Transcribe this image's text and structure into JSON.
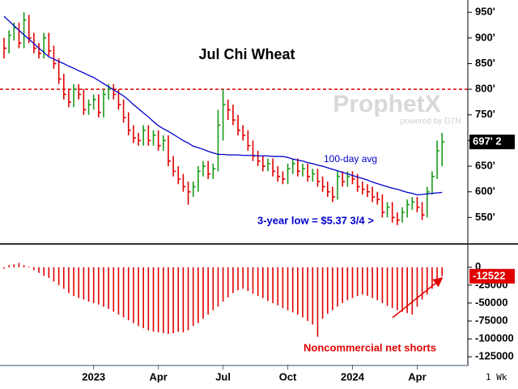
{
  "chart_data": [
    {
      "type": "hlc",
      "title": "Jul Chi Wheat",
      "high": [
        900,
        915,
        930,
        930,
        950,
        945,
        910,
        890,
        910,
        910,
        885,
        860,
        830,
        800,
        810,
        810,
        800,
        780,
        790,
        790,
        800,
        810,
        810,
        800,
        780,
        755,
        730,
        715,
        730,
        730,
        720,
        720,
        710,
        710,
        670,
        650,
        635,
        620,
        620,
        650,
        660,
        660,
        655,
        760,
        800,
        780,
        770,
        750,
        730,
        720,
        700,
        680,
        670,
        665,
        665,
        650,
        640,
        655,
        665,
        665,
        655,
        655,
        645,
        645,
        630,
        620,
        610,
        640,
        640,
        640,
        640,
        635,
        620,
        615,
        610,
        600,
        595,
        580,
        580,
        560,
        570,
        585,
        590,
        590,
        580,
        610,
        640,
        700,
        715
      ],
      "low": [
        860,
        870,
        895,
        880,
        880,
        890,
        870,
        860,
        860,
        865,
        840,
        810,
        780,
        765,
        765,
        780,
        750,
        750,
        760,
        745,
        745,
        780,
        780,
        760,
        735,
        710,
        695,
        690,
        690,
        690,
        690,
        680,
        680,
        650,
        630,
        615,
        600,
        575,
        590,
        600,
        630,
        625,
        625,
        640,
        700,
        740,
        730,
        710,
        700,
        680,
        660,
        650,
        640,
        640,
        630,
        620,
        615,
        615,
        635,
        630,
        630,
        620,
        620,
        610,
        600,
        590,
        580,
        585,
        610,
        610,
        615,
        600,
        595,
        590,
        580,
        575,
        550,
        550,
        540,
        535,
        540,
        550,
        565,
        560,
        545,
        550,
        595,
        625,
        650
      ],
      "close": [
        880,
        905,
        920,
        890,
        935,
        900,
        880,
        870,
        900,
        875,
        850,
        820,
        790,
        775,
        800,
        790,
        760,
        770,
        780,
        755,
        790,
        800,
        790,
        770,
        745,
        720,
        705,
        700,
        720,
        700,
        710,
        690,
        700,
        660,
        640,
        625,
        610,
        600,
        610,
        640,
        650,
        635,
        645,
        730,
        770,
        760,
        740,
        720,
        710,
        690,
        670,
        660,
        650,
        655,
        640,
        630,
        625,
        645,
        655,
        640,
        645,
        630,
        635,
        620,
        610,
        600,
        590,
        630,
        620,
        630,
        625,
        610,
        605,
        600,
        590,
        585,
        560,
        570,
        550,
        545,
        560,
        575,
        580,
        570,
        555,
        600,
        630,
        680,
        697.25
      ],
      "up_color": "#1a9a1a",
      "down_color": "#e00000",
      "average": {
        "label": "100-day avg",
        "color": "#0000cc",
        "values": [
          942,
          933,
          924,
          915,
          906,
          898,
          889,
          880,
          872,
          863,
          859,
          854,
          850,
          845,
          841,
          836,
          832,
          827,
          823,
          817,
          811,
          805,
          799,
          793,
          787,
          779,
          770,
          762,
          754,
          746,
          737,
          729,
          723,
          718,
          712,
          706,
          700,
          695,
          689,
          686,
          683,
          679,
          676,
          673,
          673,
          672,
          672,
          672,
          671,
          671,
          671,
          670,
          670,
          670,
          669,
          669,
          669,
          667,
          664,
          662,
          660,
          657,
          655,
          652,
          650,
          647,
          644,
          641,
          638,
          635,
          632,
          629,
          626,
          623,
          619,
          616,
          613,
          610,
          607,
          605,
          602,
          599,
          597,
          594,
          595,
          596,
          597,
          598,
          599
        ]
      },
      "reference_line": {
        "value": 800,
        "color": "#e00000"
      },
      "annotation": "3-year low = $5.37 3/4 >",
      "last_price": {
        "value": 697.25,
        "label": "697' 2"
      },
      "ylim": [
        500,
        974
      ],
      "yticks": [
        {
          "value": 550,
          "label": "550'"
        },
        {
          "value": 600,
          "label": "600'"
        },
        {
          "value": 650,
          "label": "650'"
        },
        {
          "value": 700,
          "label": "700'"
        },
        {
          "value": 750,
          "label": "750'"
        },
        {
          "value": 800,
          "label": "800'"
        },
        {
          "value": 850,
          "label": "850'"
        },
        {
          "value": 900,
          "label": "900'"
        },
        {
          "value": 950,
          "label": "950'"
        }
      ]
    },
    {
      "type": "bar",
      "categories": [
        null,
        null,
        null,
        null,
        null,
        null,
        null,
        null,
        null,
        null,
        null,
        null,
        null,
        null,
        null,
        null,
        null,
        null,
        "2023",
        null,
        null,
        null,
        null,
        null,
        null,
        null,
        null,
        null,
        null,
        null,
        null,
        "Apr",
        null,
        null,
        null,
        null,
        null,
        null,
        null,
        null,
        null,
        null,
        null,
        null,
        "Jul",
        null,
        null,
        null,
        null,
        null,
        null,
        null,
        null,
        null,
        null,
        null,
        null,
        "Oct",
        null,
        null,
        null,
        null,
        null,
        null,
        null,
        null,
        null,
        null,
        null,
        null,
        "2024",
        null,
        null,
        null,
        null,
        null,
        null,
        null,
        null,
        null,
        null,
        null,
        null,
        "Apr",
        null,
        null,
        null,
        null,
        null
      ],
      "values": [
        -2000,
        3000,
        4000,
        6000,
        3000,
        1000,
        -4000,
        -8000,
        -12000,
        -15000,
        -20000,
        -25000,
        -30000,
        -36000,
        -40000,
        -43000,
        -45000,
        -48000,
        -50000,
        -52000,
        -55000,
        -58000,
        -62000,
        -66000,
        -70000,
        -74000,
        -78000,
        -82000,
        -85000,
        -88000,
        -90000,
        -91000,
        -92000,
        -93000,
        -92000,
        -90000,
        -91000,
        -88000,
        -82000,
        -78000,
        -72000,
        -66000,
        -60000,
        -55000,
        -48000,
        -42000,
        -36000,
        -32000,
        -30000,
        -33000,
        -37000,
        -40000,
        -43000,
        -47000,
        -50000,
        -53000,
        -57000,
        -60000,
        -63000,
        -66000,
        -70000,
        -75000,
        -80000,
        -97000,
        -72000,
        -65000,
        -60000,
        -55000,
        -50000,
        -46000,
        -43000,
        -40000,
        -38000,
        -40000,
        -43000,
        -46000,
        -50000,
        -54000,
        -57000,
        -60000,
        -62000,
        -64000,
        -66000,
        -55000,
        -45000,
        -38000,
        -30000,
        -20000,
        -12522
      ],
      "color": "#e00000",
      "annotation": "Noncommercial net shorts",
      "ylim": [
        -136000,
        28000
      ],
      "yticks": [
        0,
        -25000,
        -50000,
        -75000,
        -100000,
        -125000
      ]
    }
  ],
  "watermark": {
    "brand": "ProphetX",
    "tagline": "powered by DTN"
  },
  "interval": "1 Wk"
}
